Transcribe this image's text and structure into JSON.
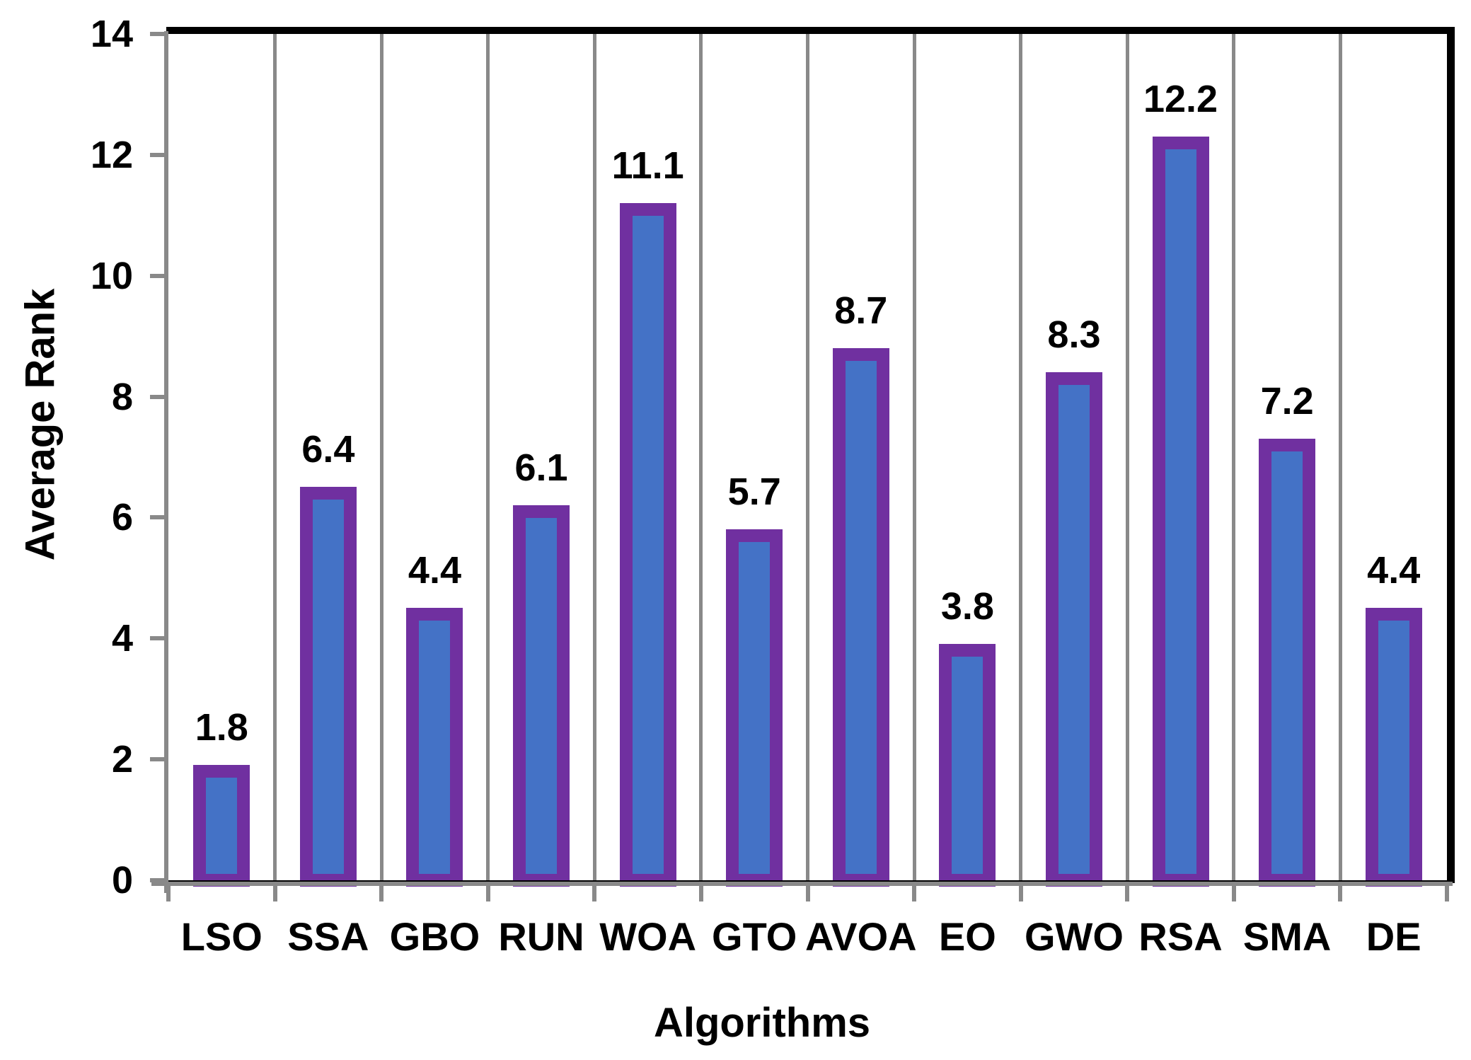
{
  "chart_data": {
    "type": "bar",
    "title": "",
    "xlabel": "Algorithms",
    "ylabel": "Average Rank",
    "categories": [
      "LSO",
      "SSA",
      "GBO",
      "RUN",
      "WOA",
      "GTO",
      "AVOA",
      "EO",
      "GWO",
      "RSA",
      "SMA",
      "DE"
    ],
    "values": [
      1.8,
      6.4,
      4.4,
      6.1,
      11.1,
      5.7,
      8.7,
      3.8,
      8.3,
      12.2,
      7.2,
      4.4
    ],
    "data_labels": [
      "1.8",
      "6.4",
      "4.4",
      "6.1",
      "11.1",
      "5.7",
      "8.7",
      "3.8",
      "8.3",
      "12.2",
      "7.2",
      "4.4"
    ],
    "ylim": [
      0,
      14
    ],
    "yticks": [
      0,
      2,
      4,
      6,
      8,
      10,
      12,
      14
    ],
    "grid": "vertical gridlines at category boundaries",
    "legend": "none",
    "colors": {
      "bar_fill": "#4472C6",
      "bar_border": "#7030A0",
      "axis_and_grid_gray": "#898989",
      "chart_frame": "#000000",
      "text": "#000000",
      "background": "#FFFFFF"
    }
  }
}
